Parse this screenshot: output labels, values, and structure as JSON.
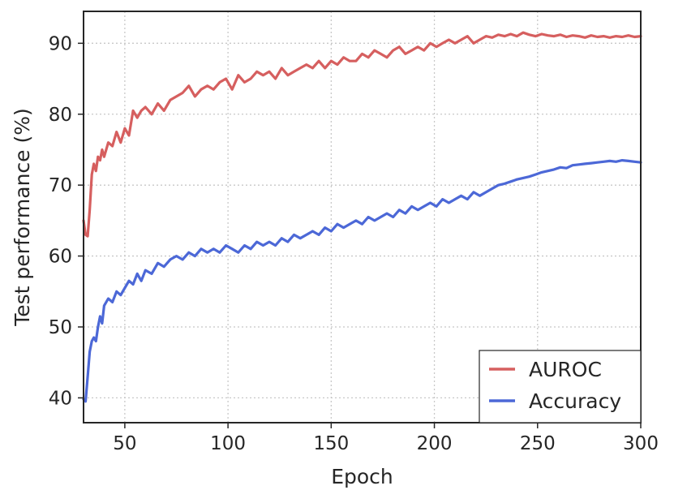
{
  "chart_data": {
    "type": "line",
    "title": "",
    "xlabel": "Epoch",
    "ylabel": "Test performance (%)",
    "xlim": [
      30,
      300
    ],
    "ylim": [
      36.5,
      94.5
    ],
    "xticks": [
      50,
      100,
      150,
      200,
      250,
      300
    ],
    "yticks": [
      40,
      50,
      60,
      70,
      80,
      90
    ],
    "grid": true,
    "grid_style": "dotted",
    "legend_position": "lower-right",
    "series": [
      {
        "name": "AUROC",
        "color": "#d65f5f",
        "x": [
          30,
          31,
          32,
          33,
          34,
          35,
          36,
          37,
          38,
          39,
          40,
          42,
          44,
          46,
          48,
          50,
          52,
          54,
          56,
          58,
          60,
          63,
          66,
          69,
          72,
          75,
          78,
          81,
          84,
          87,
          90,
          93,
          96,
          99,
          102,
          105,
          108,
          111,
          114,
          117,
          120,
          123,
          126,
          129,
          132,
          135,
          138,
          141,
          144,
          147,
          150,
          153,
          156,
          159,
          162,
          165,
          168,
          171,
          174,
          177,
          180,
          183,
          186,
          189,
          192,
          195,
          198,
          201,
          204,
          207,
          210,
          213,
          216,
          219,
          222,
          225,
          228,
          231,
          234,
          237,
          240,
          243,
          246,
          249,
          252,
          255,
          258,
          261,
          264,
          267,
          270,
          273,
          276,
          279,
          282,
          285,
          288,
          291,
          294,
          297,
          300
        ],
        "values": [
          65.0,
          63.0,
          62.8,
          66.5,
          71.5,
          73.0,
          72.0,
          74.0,
          73.5,
          75.0,
          74.0,
          76.0,
          75.5,
          77.5,
          76.0,
          78.0,
          77.0,
          80.5,
          79.5,
          80.5,
          81.0,
          80.0,
          81.5,
          80.5,
          82.0,
          82.5,
          83.0,
          84.0,
          82.5,
          83.5,
          84.0,
          83.5,
          84.5,
          85.0,
          83.5,
          85.5,
          84.5,
          85.0,
          86.0,
          85.5,
          86.0,
          85.0,
          86.5,
          85.5,
          86.0,
          86.5,
          87.0,
          86.5,
          87.5,
          86.5,
          87.5,
          87.0,
          88.0,
          87.5,
          87.5,
          88.5,
          88.0,
          89.0,
          88.5,
          88.0,
          89.0,
          89.5,
          88.5,
          89.0,
          89.5,
          89.0,
          90.0,
          89.5,
          90.0,
          90.5,
          90.0,
          90.5,
          91.0,
          90.0,
          90.5,
          91.0,
          90.8,
          91.2,
          91.0,
          91.3,
          91.0,
          91.5,
          91.2,
          91.0,
          91.3,
          91.1,
          91.0,
          91.2,
          90.9,
          91.1,
          91.0,
          90.8,
          91.1,
          90.9,
          91.0,
          90.8,
          91.0,
          90.9,
          91.1,
          90.9,
          91.0
        ]
      },
      {
        "name": "Accuracy",
        "color": "#4c68d7",
        "x": [
          30,
          31,
          32,
          33,
          34,
          35,
          36,
          37,
          38,
          39,
          40,
          42,
          44,
          46,
          48,
          50,
          52,
          54,
          56,
          58,
          60,
          63,
          66,
          69,
          72,
          75,
          78,
          81,
          84,
          87,
          90,
          93,
          96,
          99,
          102,
          105,
          108,
          111,
          114,
          117,
          120,
          123,
          126,
          129,
          132,
          135,
          138,
          141,
          144,
          147,
          150,
          153,
          156,
          159,
          162,
          165,
          168,
          171,
          174,
          177,
          180,
          183,
          186,
          189,
          192,
          195,
          198,
          201,
          204,
          207,
          210,
          213,
          216,
          219,
          222,
          225,
          228,
          231,
          234,
          237,
          240,
          243,
          246,
          249,
          252,
          255,
          258,
          261,
          264,
          267,
          270,
          273,
          276,
          279,
          282,
          285,
          288,
          291,
          294,
          297,
          300
        ],
        "values": [
          39.8,
          39.5,
          43.0,
          46.5,
          48.0,
          48.5,
          48.0,
          50.0,
          51.5,
          50.5,
          53.0,
          54.0,
          53.5,
          55.0,
          54.5,
          55.5,
          56.5,
          56.0,
          57.5,
          56.5,
          58.0,
          57.5,
          59.0,
          58.5,
          59.5,
          60.0,
          59.5,
          60.5,
          60.0,
          61.0,
          60.5,
          61.0,
          60.5,
          61.5,
          61.0,
          60.5,
          61.5,
          61.0,
          62.0,
          61.5,
          62.0,
          61.5,
          62.5,
          62.0,
          63.0,
          62.5,
          63.0,
          63.5,
          63.0,
          64.0,
          63.5,
          64.5,
          64.0,
          64.5,
          65.0,
          64.5,
          65.5,
          65.0,
          65.5,
          66.0,
          65.5,
          66.5,
          66.0,
          67.0,
          66.5,
          67.0,
          67.5,
          67.0,
          68.0,
          67.5,
          68.0,
          68.5,
          68.0,
          69.0,
          68.5,
          69.0,
          69.5,
          70.0,
          70.2,
          70.5,
          70.8,
          71.0,
          71.2,
          71.5,
          71.8,
          72.0,
          72.2,
          72.5,
          72.4,
          72.8,
          72.9,
          73.0,
          73.1,
          73.2,
          73.3,
          73.4,
          73.3,
          73.5,
          73.4,
          73.3,
          73.2
        ]
      }
    ]
  }
}
